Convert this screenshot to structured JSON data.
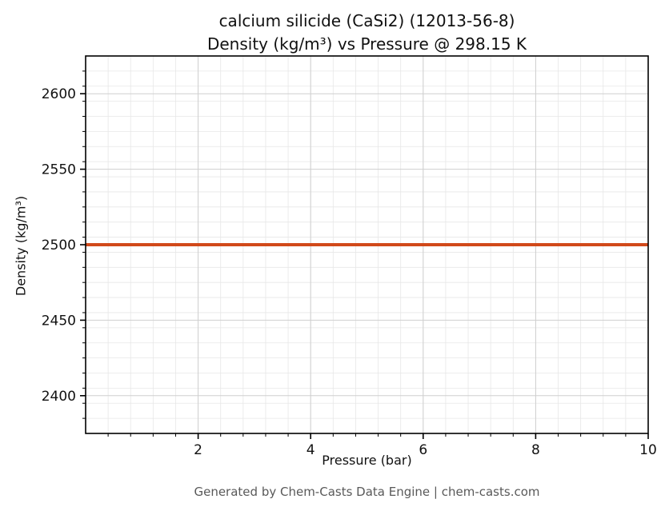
{
  "chart_data": {
    "type": "line",
    "title_line1": "calcium silicide (CaSi2) (12013-56-8)",
    "title_line2": "Density (kg/m³) vs Pressure @ 298.15 K",
    "xlabel": "Pressure (bar)",
    "ylabel": "Density (kg/m³)",
    "xlim": [
      0,
      10
    ],
    "ylim": [
      2375,
      2625
    ],
    "xticks": [
      2,
      4,
      6,
      8,
      10
    ],
    "yticks": [
      2400,
      2450,
      2500,
      2550,
      2600
    ],
    "x_minor_step": 0.4,
    "y_minor_step": 10,
    "grid": true,
    "legend": "none",
    "series": [
      {
        "name": "Density",
        "color": "#d1491a",
        "linewidth": 4,
        "x": [
          0,
          10
        ],
        "y": [
          2500,
          2500
        ]
      }
    ],
    "footer": "Generated by Chem-Casts Data Engine | chem-casts.com",
    "colors": {
      "line": "#d1491a",
      "minor_grid": "#e7e7e7",
      "major_grid": "#cfcfcf",
      "axis": "#000000",
      "footer_text": "#595959"
    }
  }
}
